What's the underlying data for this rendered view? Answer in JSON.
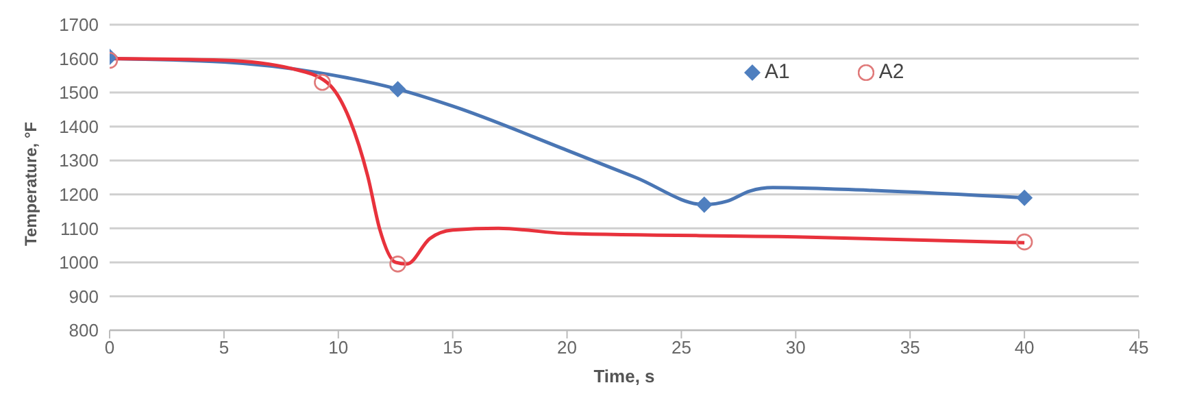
{
  "chart_data": {
    "type": "line",
    "xlabel": "Time, s",
    "ylabel": "Temperature, °F",
    "xlim": [
      0,
      45
    ],
    "xticks": [
      0,
      5,
      10,
      15,
      20,
      25,
      30,
      35,
      40,
      45
    ],
    "ylim": [
      800,
      1700
    ],
    "yticks": [
      800,
      900,
      1000,
      1100,
      1200,
      1300,
      1400,
      1500,
      1600,
      1700
    ],
    "grid": "y",
    "legend": "top right",
    "series": [
      {
        "marker": "none",
        "color": "#4a76b4",
        "x": [
          0,
          5,
          9,
          12.6,
          15,
          20,
          23,
          26,
          27,
          28,
          29,
          32,
          40
        ],
        "values": [
          1600,
          1590,
          1560,
          1510,
          1460,
          1330,
          1250,
          1170,
          1180,
          1210,
          1220,
          1215,
          1190
        ]
      },
      {
        "marker": "none",
        "color": "#e8323c",
        "x": [
          0,
          5,
          8,
          9.5,
          10.5,
          11.3,
          11.8,
          12.5,
          13,
          14,
          15,
          17,
          20,
          30,
          40
        ],
        "values": [
          1600,
          1595,
          1570,
          1530,
          1420,
          1250,
          1100,
          1000,
          995,
          1070,
          1095,
          1100,
          1085,
          1075,
          1058
        ]
      },
      {
        "type": "scatter",
        "name": "A1",
        "marker": "diamond",
        "color": "#4f7fbf",
        "x": [
          0,
          12.6,
          26,
          40
        ],
        "values": [
          1605,
          1510,
          1170,
          1190
        ]
      },
      {
        "type": "scatter",
        "name": "A2",
        "marker": "circle",
        "color": "#e07a7a",
        "x": [
          0,
          9.3,
          12.6,
          40
        ],
        "values": [
          1595,
          1530,
          995,
          1060
        ]
      }
    ]
  }
}
